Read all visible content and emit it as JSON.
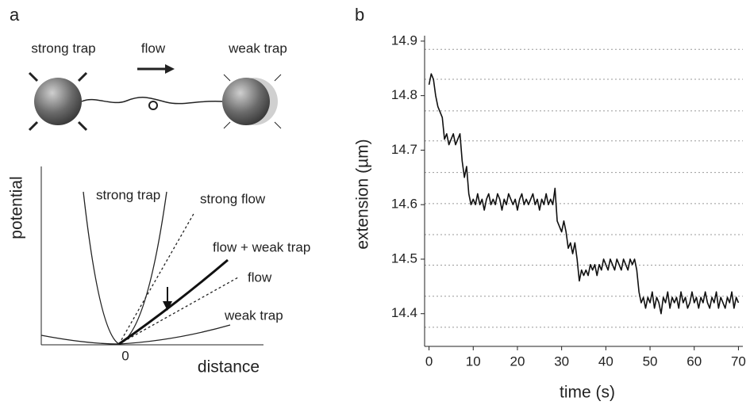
{
  "panel_a": {
    "label": "a",
    "strong_trap": "strong trap",
    "flow": "flow",
    "weak_trap": "weak trap",
    "y_label": "potential",
    "x_label": "distance",
    "origin": "0",
    "curves": {
      "strong_trap": "strong trap",
      "strong_flow": "strong flow",
      "flow_weak_trap": "flow + weak trap",
      "flow": "flow",
      "weak_trap": "weak trap"
    }
  },
  "chart_data": {
    "type": "line",
    "label": "b",
    "x_label": "time (s)",
    "y_label": "extension (µm)",
    "color": "#111111",
    "xlim": [
      -1,
      71
    ],
    "ylim": [
      14.34,
      14.91
    ],
    "xticks": [
      0,
      10,
      20,
      30,
      40,
      50,
      60,
      70
    ],
    "yticks": [
      14.4,
      14.5,
      14.6,
      14.7,
      14.8,
      14.9
    ],
    "grid_lines": [
      14.885,
      14.83,
      14.772,
      14.717,
      14.659,
      14.602,
      14.545,
      14.489,
      14.432,
      14.375
    ],
    "x": [
      0,
      0.5,
      1,
      1.5,
      2,
      2.5,
      3,
      3.5,
      4,
      4.5,
      5,
      5.5,
      6,
      6.5,
      7,
      7.5,
      8,
      8.5,
      9,
      9.5,
      10,
      10.5,
      11,
      11.5,
      12,
      12.5,
      13,
      13.5,
      14,
      14.5,
      15,
      15.5,
      16,
      16.5,
      17,
      17.5,
      18,
      18.5,
      19,
      19.5,
      20,
      20.5,
      21,
      21.5,
      22,
      22.5,
      23,
      23.5,
      24,
      24.5,
      25,
      25.5,
      26,
      26.5,
      27,
      27.5,
      28,
      28.5,
      29,
      29.5,
      30,
      30.5,
      31,
      31.5,
      32,
      32.5,
      33,
      33.5,
      34,
      34.5,
      35,
      35.5,
      36,
      36.5,
      37,
      37.5,
      38,
      38.5,
      39,
      39.5,
      40,
      40.5,
      41,
      41.5,
      42,
      42.5,
      43,
      43.5,
      44,
      44.5,
      45,
      45.5,
      46,
      46.5,
      47,
      47.5,
      48,
      48.5,
      49,
      49.5,
      50,
      50.5,
      51,
      51.5,
      52,
      52.5,
      53,
      53.5,
      54,
      54.5,
      55,
      55.5,
      56,
      56.5,
      57,
      57.5,
      58,
      58.5,
      59,
      59.5,
      60,
      60.5,
      61,
      61.5,
      62,
      62.5,
      63,
      63.5,
      64,
      64.5,
      65,
      65.5,
      66,
      66.5,
      67,
      67.5,
      68,
      68.5,
      69,
      69.5,
      70
    ],
    "values": [
      14.82,
      14.84,
      14.83,
      14.8,
      14.78,
      14.77,
      14.76,
      14.72,
      14.73,
      14.71,
      14.72,
      14.73,
      14.71,
      14.72,
      14.73,
      14.68,
      14.65,
      14.67,
      14.62,
      14.6,
      14.61,
      14.6,
      14.62,
      14.6,
      14.61,
      14.59,
      14.61,
      14.62,
      14.6,
      14.61,
      14.6,
      14.62,
      14.61,
      14.59,
      14.61,
      14.6,
      14.62,
      14.61,
      14.6,
      14.61,
      14.59,
      14.61,
      14.62,
      14.6,
      14.61,
      14.6,
      14.61,
      14.62,
      14.6,
      14.61,
      14.59,
      14.61,
      14.6,
      14.62,
      14.6,
      14.61,
      14.6,
      14.63,
      14.57,
      14.56,
      14.55,
      14.57,
      14.55,
      14.52,
      14.53,
      14.51,
      14.53,
      14.5,
      14.46,
      14.48,
      14.47,
      14.48,
      14.47,
      14.49,
      14.48,
      14.49,
      14.47,
      14.49,
      14.48,
      14.5,
      14.49,
      14.48,
      14.5,
      14.49,
      14.48,
      14.5,
      14.49,
      14.48,
      14.5,
      14.49,
      14.48,
      14.5,
      14.49,
      14.5,
      14.48,
      14.44,
      14.42,
      14.43,
      14.41,
      14.43,
      14.42,
      14.44,
      14.41,
      14.43,
      14.42,
      14.4,
      14.43,
      14.42,
      14.44,
      14.41,
      14.43,
      14.42,
      14.43,
      14.41,
      14.44,
      14.42,
      14.43,
      14.41,
      14.42,
      14.44,
      14.42,
      14.43,
      14.41,
      14.43,
      14.42,
      14.44,
      14.42,
      14.41,
      14.43,
      14.42,
      14.44,
      14.41,
      14.43,
      14.42,
      14.41,
      14.43,
      14.42,
      14.44,
      14.41,
      14.43,
      14.42
    ]
  }
}
